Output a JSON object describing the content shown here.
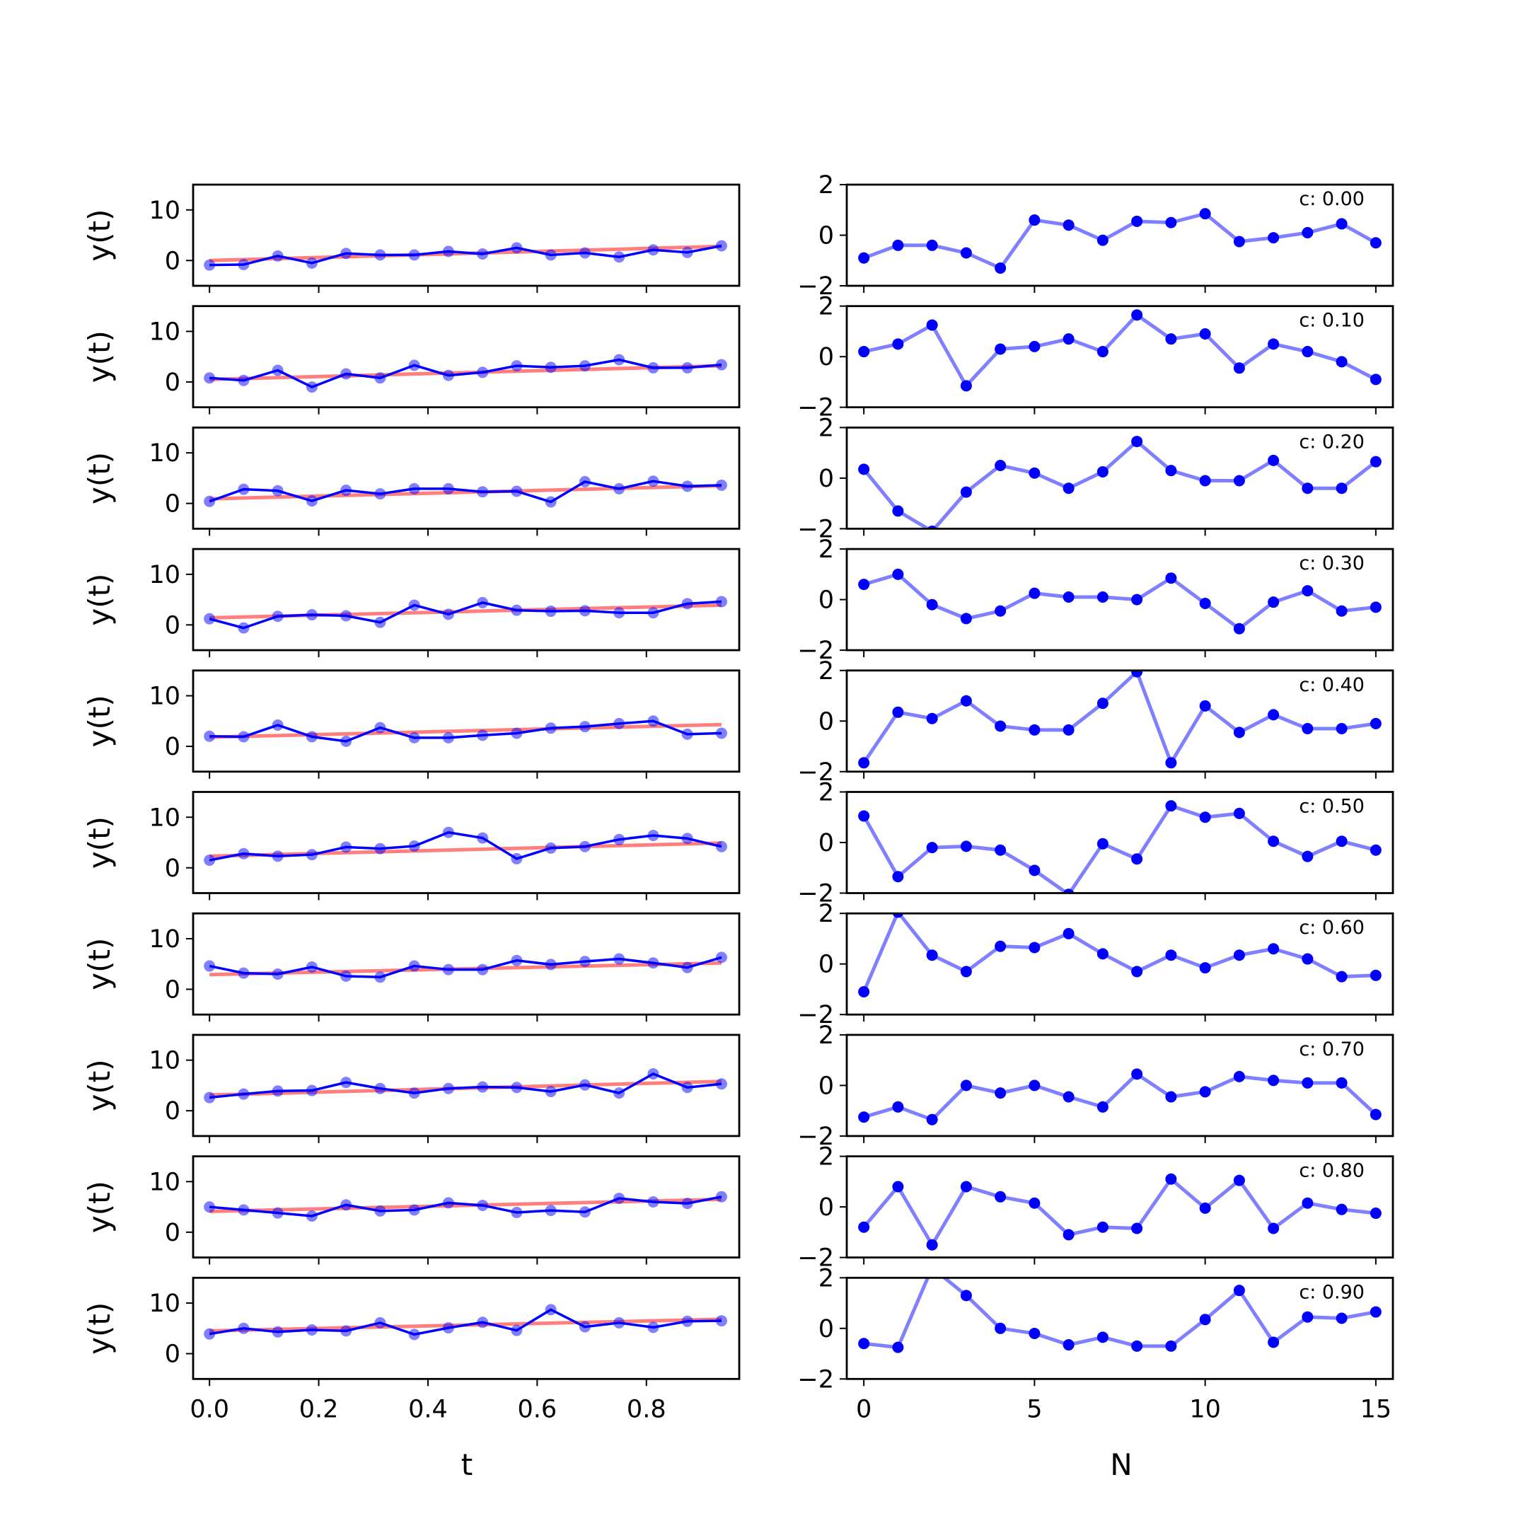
{
  "colors": {
    "data_line": "#0000ff",
    "fit_line": "#ff0000",
    "residual": "#0000ff",
    "residual_line": "#0000ff"
  },
  "chart_data": [
    {
      "type": "line",
      "panel": "left",
      "description_axis": "time series with linear fit",
      "xlabel": "t",
      "ylabel": "y(t)",
      "xlim": [
        -0.03,
        0.97
      ],
      "ylim": [
        -5,
        15
      ],
      "xticks": [
        0.0,
        0.2,
        0.4,
        0.6,
        0.8
      ],
      "xtick_labels": [
        "0.0",
        "0.2",
        "0.4",
        "0.6",
        "0.8"
      ],
      "yticks": [
        0,
        10
      ],
      "ytick_labels": [
        "0",
        "10"
      ],
      "x": [
        0.0,
        0.0625,
        0.125,
        0.1875,
        0.25,
        0.3125,
        0.375,
        0.4375,
        0.5,
        0.5625,
        0.625,
        0.6875,
        0.75,
        0.8125,
        0.875,
        0.9375
      ],
      "rows": [
        {
          "y": [
            -0.9,
            -0.8,
            0.9,
            -0.5,
            1.4,
            1.1,
            1.1,
            1.8,
            1.3,
            2.5,
            1.1,
            1.5,
            0.7,
            2.1,
            1.6,
            2.9
          ],
          "fit": [
            0.0,
            2.8
          ]
        },
        {
          "y": [
            0.8,
            0.3,
            2.3,
            -1.0,
            1.6,
            0.8,
            3.3,
            1.3,
            1.9,
            3.2,
            2.9,
            3.2,
            4.4,
            2.8,
            2.8,
            3.4
          ],
          "fit": [
            0.5,
            3.2
          ]
        },
        {
          "y": [
            0.4,
            2.8,
            2.5,
            0.5,
            2.6,
            1.9,
            2.9,
            2.9,
            2.3,
            2.4,
            0.3,
            4.3,
            2.9,
            4.4,
            3.4,
            3.6
          ],
          "fit": [
            0.9,
            3.5
          ]
        },
        {
          "y": [
            1.2,
            -0.6,
            1.7,
            2.0,
            1.8,
            0.5,
            3.9,
            2.1,
            4.4,
            2.9,
            2.7,
            2.8,
            2.4,
            2.4,
            4.2,
            4.6
          ],
          "fit": [
            1.4,
            3.9
          ]
        },
        {
          "y": [
            2.0,
            1.9,
            4.2,
            1.9,
            1.0,
            3.7,
            1.7,
            1.7,
            2.2,
            2.6,
            3.6,
            3.9,
            4.5,
            5.0,
            2.4,
            2.6
          ],
          "fit": [
            1.8,
            4.3
          ]
        },
        {
          "y": [
            1.5,
            2.8,
            2.3,
            2.6,
            4.1,
            3.8,
            4.3,
            7.0,
            5.9,
            1.8,
            3.9,
            4.2,
            5.6,
            6.4,
            5.8,
            4.2
          ],
          "fit": [
            2.3,
            4.9
          ]
        },
        {
          "y": [
            4.6,
            3.2,
            3.0,
            4.4,
            2.6,
            2.4,
            4.6,
            3.9,
            3.9,
            5.7,
            4.9,
            5.5,
            6.0,
            5.2,
            4.3,
            6.3
          ],
          "fit": [
            2.9,
            5.2
          ]
        },
        {
          "y": [
            2.6,
            3.3,
            3.9,
            4.0,
            5.6,
            4.4,
            3.5,
            4.4,
            4.7,
            4.6,
            3.8,
            5.1,
            3.5,
            7.3,
            4.6,
            5.3
          ],
          "fit": [
            3.1,
            5.8
          ]
        },
        {
          "y": [
            5.0,
            4.4,
            3.8,
            3.2,
            5.4,
            4.2,
            4.4,
            5.8,
            5.3,
            3.9,
            4.3,
            4.0,
            6.7,
            6.0,
            5.7,
            7.0
          ],
          "fit": [
            4.1,
            6.5
          ]
        },
        {
          "y": [
            3.9,
            5.0,
            4.3,
            4.7,
            4.5,
            6.1,
            3.8,
            5.1,
            6.2,
            4.6,
            8.7,
            5.3,
            6.1,
            5.2,
            6.4,
            6.5
          ],
          "fit": [
            4.5,
            6.8
          ]
        }
      ]
    },
    {
      "type": "line",
      "panel": "right",
      "description_axis": "residuals",
      "xlabel": "N",
      "ylabel": "",
      "xlim": [
        -0.5,
        15.5
      ],
      "ylim": [
        -2,
        2
      ],
      "xticks": [
        0,
        5,
        10,
        15
      ],
      "xtick_labels": [
        "0",
        "5",
        "10",
        "15"
      ],
      "yticks": [
        -2,
        0,
        2
      ],
      "ytick_labels": [
        "−2",
        "0",
        "2"
      ],
      "x": [
        0,
        1,
        2,
        3,
        4,
        5,
        6,
        7,
        8,
        9,
        10,
        11,
        12,
        13,
        14,
        15
      ],
      "rows": [
        {
          "c": "c: 0.00",
          "y": [
            -0.9,
            -0.4,
            -0.4,
            -0.7,
            -1.3,
            0.6,
            0.4,
            -0.2,
            0.55,
            0.5,
            0.85,
            -0.25,
            -0.1,
            0.1,
            0.45,
            -0.3
          ]
        },
        {
          "c": "c: 0.10",
          "y": [
            0.2,
            0.5,
            1.25,
            -1.15,
            0.3,
            0.4,
            0.7,
            0.2,
            1.65,
            0.7,
            0.9,
            -0.45,
            0.5,
            0.2,
            -0.2,
            -0.9
          ]
        },
        {
          "c": "c: 0.20",
          "y": [
            0.35,
            -1.3,
            -2.1,
            -0.55,
            0.5,
            0.2,
            -0.4,
            0.25,
            1.45,
            0.3,
            -0.1,
            -0.1,
            0.7,
            -0.4,
            -0.4,
            0.65
          ]
        },
        {
          "c": "c: 0.30",
          "y": [
            0.6,
            1.0,
            -0.2,
            -0.75,
            -0.45,
            0.25,
            0.1,
            0.1,
            0.0,
            0.85,
            -0.15,
            -1.15,
            -0.1,
            0.35,
            -0.45,
            -0.3
          ]
        },
        {
          "c": "c: 0.40",
          "y": [
            -1.65,
            0.35,
            0.1,
            0.8,
            -0.2,
            -0.35,
            -0.35,
            0.7,
            1.95,
            -1.65,
            0.6,
            -0.45,
            0.25,
            -0.3,
            -0.3,
            -0.1
          ]
        },
        {
          "c": "c: 0.50",
          "y": [
            1.05,
            -1.35,
            -0.2,
            -0.15,
            -0.3,
            -1.1,
            -2.05,
            -0.05,
            -0.65,
            1.45,
            1.0,
            1.15,
            0.05,
            -0.55,
            0.05,
            -0.3
          ]
        },
        {
          "c": "c: 0.60",
          "y": [
            -1.1,
            2.05,
            0.35,
            -0.3,
            0.7,
            0.65,
            1.2,
            0.4,
            -0.3,
            0.35,
            -0.15,
            0.35,
            0.6,
            0.2,
            -0.5,
            -0.45
          ]
        },
        {
          "c": "c: 0.70",
          "y": [
            -1.25,
            -0.85,
            -1.35,
            0.0,
            -0.3,
            0.0,
            -0.45,
            -0.85,
            0.45,
            -0.45,
            -0.25,
            0.35,
            0.2,
            0.1,
            0.1,
            -1.15
          ]
        },
        {
          "c": "c: 0.80",
          "y": [
            -0.8,
            0.8,
            -1.5,
            0.8,
            0.4,
            0.15,
            -1.1,
            -0.8,
            -0.85,
            1.1,
            -0.05,
            1.05,
            -0.85,
            0.15,
            -0.1,
            -0.25
          ]
        },
        {
          "c": "c: 0.90",
          "y": [
            -0.6,
            -0.75,
            2.4,
            1.3,
            0.0,
            -0.2,
            -0.65,
            -0.35,
            -0.7,
            -0.7,
            0.35,
            1.5,
            -0.55,
            0.45,
            0.4,
            0.65
          ]
        }
      ]
    }
  ]
}
